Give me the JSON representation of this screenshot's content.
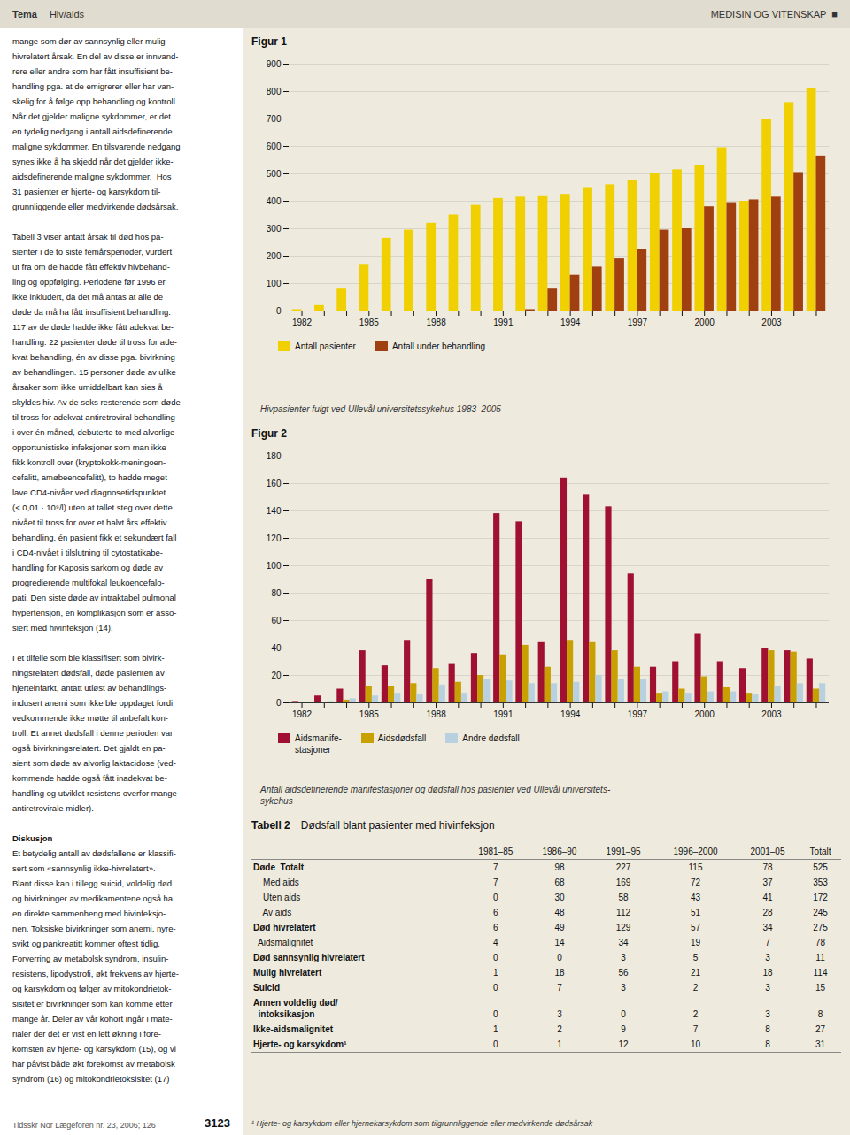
{
  "chart_data": [
    {
      "type": "header",
      "annotations": [
        "Tema",
        "Hiv/aids",
        "MEDISIN OG VITENSKAP  ■"
      ]
    },
    {
      "type": "text",
      "annotations": [
        [
          "mange som dør av sannsynlig eller mulig",
          "hivrelatert årsak. En del av disse er innvand-",
          "rere eller andre som har fått insuffisient be-",
          "handling pga. at de emigrerer eller har van-",
          "skelig for å følge opp behandling og kontroll.",
          "Når det gjelder maligne sykdommer, er det",
          "en tydelig nedgang i antall aidsdefinerende",
          "maligne sykdommer. En tilsvarende nedgang",
          "synes ikke å ha skjedd når det gjelder ikke-",
          "aidsdefinerende maligne sykdommer.  Hos",
          "31 pasienter er hjerte- og karsykdom til-",
          "grunnliggende eller medvirkende dødsårsak."
        ],
        [
          "Tabell 3 viser antatt årsak til død hos pa-",
          "sienter i de to siste femårsperioder, vurdert",
          "ut fra om de hadde fått effektiv hivbehand-",
          "ling og oppfølging. Periodene før 1996 er",
          "ikke inkludert, da det må antas at alle de",
          "døde da må ha fått insuffisient behandling.",
          "117 av de døde hadde ikke fått adekvat be-",
          "handling. 22 pasienter døde til tross for ade-",
          "kvat behandling, én av disse pga. bivirkning",
          "av behandlingen. 15 personer døde av ulike",
          "årsaker som ikke umiddelbart kan sies å",
          "skyldes hiv. Av de seks resterende som døde",
          "til tross for adekvat antiretroviral behandling",
          "i over én måned, debuterte to med alvorlige",
          "opportunistiske infeksjoner som man ikke",
          "fikk kontroll over (kryptokokk-meningoen-",
          "cefalitt, amøbeencefalitt), to hadde meget",
          "lave CD4-nivåer ved diagnosetidspunktet",
          "(< 0,01 · 10⁹/l) uten at tallet steg over dette",
          "nivået til tross for over et halvt års effektiv",
          "behandling, én pasient fikk et sekundært fall",
          "i CD4-nivået i tilslutning til cytostatikabe-",
          "handling for Kaposis sarkom og døde av",
          "progredierende multifokal leukoencefalo-",
          "pati. Den siste døde av intraktabel pulmonal",
          "hypertensjon, en komplikasjon som er asso-",
          "siert med hivinfeksjon (14)."
        ],
        [
          "I et tilfelle som ble klassifisert som bivirk-",
          "ningsrelatert dødsfall, døde pasienten av",
          "hjerteinfarkt, antatt utløst av behandlings-",
          "indusert anemi som ikke ble oppdaget fordi",
          "vedkommende ikke møtte til anbefalt kon-",
          "troll. Et annet dødsfall i denne perioden var",
          "også bivirkningsrelatert. Det gjaldt en pa-",
          "sient som døde av alvorlig laktacidose (ved-",
          "kommende hadde også fått inadekvat be-",
          "handling og utviklet resistens overfor mange",
          "antiretrovirale midler)."
        ]
      ]
    },
    {
      "type": "text",
      "title": "Diskusjon",
      "annotations": [
        [
          "Et betydelig antall av dødsfallene er klassifi-",
          "sert som «sannsynlig ikke-hivrelatert».",
          "Blant disse kan i tillegg suicid, voldelig død",
          "og bivirkninger av medikamentene også ha",
          "en direkte sammenheng med hivinfeksjo-",
          "nen. Toksiske bivirkninger som anemi, nyre-",
          "svikt og pankreatitt kommer oftest tidlig.",
          "Forverring av metabolsk syndrom, insulin-",
          "resistens, lipodystrofi, økt frekvens av hjerte-",
          "og karsykdom og følger av mitokondrietok-",
          "sisitet er bivirkninger som kan komme etter",
          "mange år. Deler av vår kohort ingår i mate-",
          "rialer der det er vist en lett økning i fore-",
          "komsten av hjerte- og karsykdom (15), og vi",
          "har påvist både økt forekomst av metabolsk",
          "syndrom (16) og mitokondrietoksisitet (17)"
        ]
      ]
    },
    {
      "type": "footer",
      "annotations": [
        "Tidsskr Nor Lægeforen nr. 23, 2006; 126",
        "3123"
      ]
    },
    {
      "type": "bar",
      "title": "Figur 1",
      "categories": [
        "1982",
        null,
        null,
        "1985",
        null,
        null,
        "1988",
        null,
        null,
        "1991",
        null,
        null,
        "1994",
        null,
        null,
        "1997",
        null,
        null,
        "2000",
        null,
        null,
        "2003",
        null,
        null
      ],
      "series": [
        {
          "name": "Antall pasienter",
          "color": "#f0d000",
          "values": [
            5,
            20,
            80,
            170,
            265,
            295,
            320,
            350,
            385,
            410,
            415,
            420,
            425,
            450,
            460,
            475,
            500,
            515,
            530,
            595,
            400,
            700,
            760,
            810
          ]
        },
        {
          "name": "Antall under behandling",
          "color": "#a04010",
          "values": [
            0,
            0,
            0,
            0,
            0,
            0,
            0,
            0,
            0,
            0,
            5,
            80,
            130,
            160,
            190,
            225,
            295,
            300,
            380,
            395,
            405,
            415,
            505,
            565
          ]
        }
      ],
      "ylim": [
        0,
        900
      ],
      "yticks": [
        0,
        100,
        200,
        300,
        400,
        500,
        600,
        700,
        800,
        900
      ],
      "grid": true,
      "legend": "bottom",
      "annotations": [
        "Hivpasienter fulgt ved Ullevål universitetssykehus 1983–2005"
      ]
    },
    {
      "type": "bar",
      "title": "Figur 2",
      "categories": [
        "1982",
        null,
        null,
        "1985",
        null,
        null,
        "1988",
        null,
        null,
        "1991",
        null,
        null,
        "1994",
        null,
        null,
        "1997",
        null,
        null,
        "2000",
        null,
        null,
        "2003",
        null,
        null
      ],
      "series": [
        {
          "name": "Aidsmanife-\nstasjoner",
          "color": "#a01030",
          "values": [
            1,
            5,
            10,
            38,
            27,
            45,
            90,
            28,
            36,
            138,
            132,
            44,
            164,
            152,
            143,
            94,
            26,
            30,
            50,
            30,
            25,
            40,
            38,
            32
          ]
        },
        {
          "name": "Aidsdødsfall",
          "color": "#c8a000",
          "values": [
            0,
            0,
            2,
            12,
            12,
            14,
            25,
            15,
            20,
            35,
            42,
            26,
            45,
            44,
            38,
            26,
            7,
            10,
            19,
            11,
            7,
            38,
            37,
            10
          ]
        },
        {
          "name": "Andre dødsfall",
          "color": "#b8d0e0",
          "values": [
            0,
            1,
            3,
            5,
            7,
            6,
            13,
            7,
            17,
            16,
            14,
            14,
            15,
            20,
            17,
            17,
            8,
            7,
            8,
            8,
            6,
            12,
            14,
            14
          ]
        }
      ],
      "ylim": [
        0,
        180
      ],
      "yticks": [
        0,
        20,
        40,
        60,
        80,
        100,
        120,
        140,
        160,
        180
      ],
      "grid": true,
      "legend": "bottom",
      "annotations": [
        "Antall aidsdefinerende manifestasjoner og dødsfall hos pasienter ved Ullevål universitets-\nsykehus"
      ]
    },
    {
      "type": "table",
      "title": "Tabell 2",
      "subtitle": "Dødsfall blant pasienter med hivinfeksjon",
      "categories": [
        "Døde  Totalt",
        "    Med aids",
        "    Uten aids",
        "    Av aids",
        "Død hivrelatert",
        "  Aidsmalignitet",
        "Død sannsynlig hivrelatert",
        "Mulig hivrelatert",
        "Suicid",
        "Annen voldelig død/\n  intoksikasjon",
        "Ikke-aidsmalignitet",
        "Hjerte- og karsykdom¹"
      ],
      "series": [
        {
          "name": "1981–85",
          "values": [
            7,
            7,
            0,
            6,
            6,
            4,
            0,
            1,
            0,
            0,
            1,
            0
          ]
        },
        {
          "name": "1986–90",
          "values": [
            98,
            68,
            30,
            48,
            49,
            14,
            0,
            18,
            7,
            3,
            2,
            1
          ]
        },
        {
          "name": "1991–95",
          "values": [
            227,
            169,
            58,
            112,
            129,
            34,
            3,
            56,
            3,
            0,
            9,
            12
          ]
        },
        {
          "name": "1996–2000",
          "values": [
            115,
            72,
            43,
            51,
            57,
            19,
            5,
            21,
            2,
            2,
            7,
            10
          ]
        },
        {
          "name": "2001–05",
          "values": [
            78,
            37,
            41,
            28,
            34,
            7,
            3,
            18,
            3,
            3,
            8,
            8
          ]
        },
        {
          "name": "Totalt",
          "values": [
            525,
            353,
            172,
            245,
            275,
            78,
            11,
            114,
            15,
            8,
            27,
            31
          ]
        }
      ],
      "annotations": [
        "¹ Hjerte- og karsykdom eller hjernekarsykdom som tilgrunnliggende eller medvirkende dødsårsak"
      ]
    }
  ]
}
